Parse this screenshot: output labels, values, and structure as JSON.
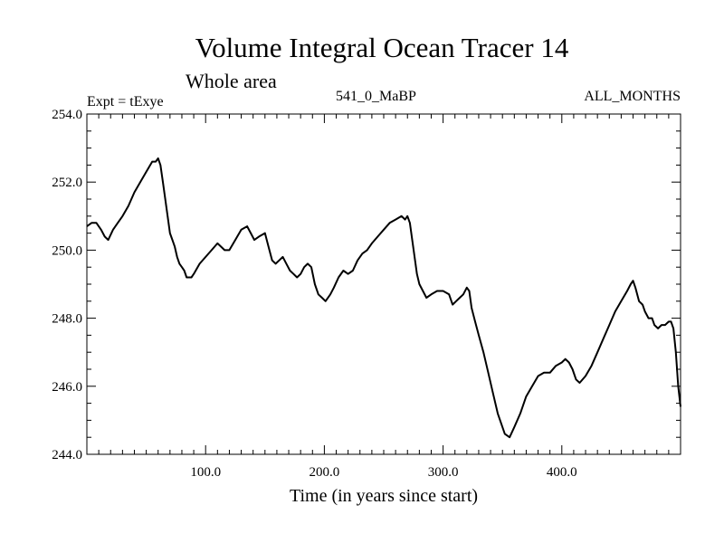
{
  "chart_data": {
    "type": "line",
    "title": "Volume Integral Ocean Tracer 14",
    "subtitle": "Whole area",
    "left_label": "Expt = tExye",
    "center_label": "541_0_MaBP",
    "right_label": "ALL_MONTHS",
    "xlabel": "Time (in years since start)",
    "ylabel": "",
    "xlim": [
      0,
      500
    ],
    "ylim": [
      244.0,
      254.0
    ],
    "x_ticks": [
      100,
      200,
      300,
      400
    ],
    "x_tick_labels": [
      "100.0",
      "200.0",
      "300.0",
      "400.0"
    ],
    "y_ticks": [
      244,
      246,
      248,
      250,
      252,
      254
    ],
    "y_tick_labels": [
      "244.0",
      "246.0",
      "248.0",
      "250.0",
      "252.0",
      "254.0"
    ],
    "grid": false,
    "line_color": "#000000",
    "series": [
      {
        "x": [
          0,
          4,
          8,
          12,
          15,
          18,
          22,
          26,
          30,
          35,
          40,
          45,
          50,
          55,
          58,
          60,
          62,
          64,
          66,
          68,
          70,
          72,
          74,
          76,
          78,
          80,
          82,
          84,
          86,
          88,
          90,
          95,
          100,
          105,
          110,
          113,
          116,
          120,
          125,
          130,
          135,
          138,
          141,
          145,
          150,
          153,
          156,
          159,
          162,
          165,
          168,
          171,
          174,
          177,
          180,
          183,
          186,
          189,
          192,
          195,
          198,
          201,
          205,
          208,
          212,
          216,
          220,
          224,
          228,
          232,
          236,
          240,
          245,
          250,
          255,
          260,
          265,
          268,
          270,
          272,
          274,
          276,
          278,
          280,
          283,
          286,
          290,
          295,
          300,
          305,
          308,
          311,
          314,
          317,
          320,
          322,
          324,
          327,
          330,
          334,
          338,
          342,
          346,
          349,
          352,
          356,
          360,
          365,
          370,
          375,
          380,
          385,
          390,
          395,
          400,
          403,
          406,
          409,
          412,
          415,
          420,
          425,
          430,
          435,
          440,
          445,
          450,
          455,
          458,
          460,
          462,
          465,
          468,
          470,
          473,
          476,
          478,
          481,
          484,
          487,
          490,
          492,
          494,
          496,
          498,
          500
        ],
        "y": [
          250.7,
          250.8,
          250.8,
          250.6,
          250.4,
          250.3,
          250.6,
          250.8,
          251.0,
          251.3,
          251.7,
          252.0,
          252.3,
          252.6,
          252.6,
          252.7,
          252.5,
          252.0,
          251.5,
          251.0,
          250.5,
          250.3,
          250.1,
          249.8,
          249.6,
          249.5,
          249.4,
          249.2,
          249.2,
          249.2,
          249.3,
          249.6,
          249.8,
          250.0,
          250.2,
          250.1,
          250.0,
          250.0,
          250.3,
          250.6,
          250.7,
          250.5,
          250.3,
          250.4,
          250.5,
          250.1,
          249.7,
          249.6,
          249.7,
          249.8,
          249.6,
          249.4,
          249.3,
          249.2,
          249.3,
          249.5,
          249.6,
          249.5,
          249.0,
          248.7,
          248.6,
          248.5,
          248.7,
          248.9,
          249.2,
          249.4,
          249.3,
          249.4,
          249.7,
          249.9,
          250.0,
          250.2,
          250.4,
          250.6,
          250.8,
          250.9,
          251.0,
          250.9,
          251.0,
          250.8,
          250.3,
          249.8,
          249.3,
          249.0,
          248.8,
          248.6,
          248.7,
          248.8,
          248.8,
          248.7,
          248.4,
          248.5,
          248.6,
          248.7,
          248.9,
          248.8,
          248.3,
          247.9,
          247.5,
          247.0,
          246.4,
          245.8,
          245.2,
          244.9,
          244.6,
          244.5,
          244.8,
          245.2,
          245.7,
          246.0,
          246.3,
          246.4,
          246.4,
          246.6,
          246.7,
          246.8,
          246.7,
          246.5,
          246.2,
          246.1,
          246.3,
          246.6,
          247.0,
          247.4,
          247.8,
          248.2,
          248.5,
          248.8,
          249.0,
          249.1,
          248.9,
          248.5,
          248.4,
          248.2,
          248.0,
          248.0,
          247.8,
          247.7,
          247.8,
          247.8,
          247.9,
          247.9,
          247.7,
          247.0,
          246.0,
          245.4
        ]
      }
    ]
  }
}
